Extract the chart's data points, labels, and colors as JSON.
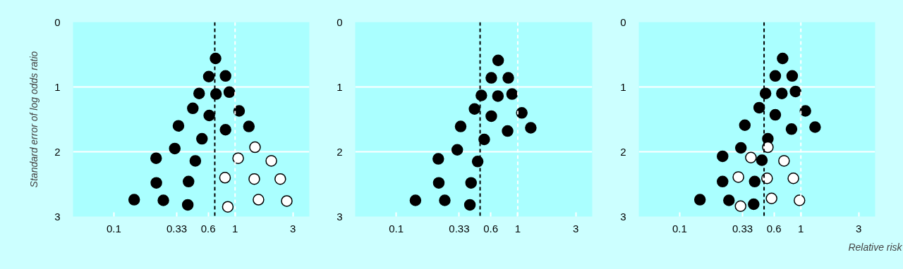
{
  "chart_data": [
    {
      "type": "scatter",
      "ylabel": "Standard error of log odds ratio",
      "xlim": [
        0.046,
        4.1
      ],
      "ylim": [
        3,
        0
      ],
      "log": "x",
      "grid": "y",
      "marker": "circle",
      "xticks": [
        0.1,
        0.33,
        0.6,
        1,
        3
      ],
      "yticks": [
        0,
        1,
        2,
        3
      ],
      "ref_lines": [
        {
          "axis": "x",
          "value": 0.68,
          "color": "#000000",
          "line_style": "dashed"
        },
        {
          "axis": "x",
          "value": 1,
          "color": "#ffffff",
          "line_style": "dashed"
        }
      ],
      "series": [
        {
          "color": "#000000",
          "x": [
            0.69,
            0.607,
            0.834,
            0.505,
            0.696,
            0.896,
            0.448,
            0.612,
            1.08,
            0.341,
            0.834,
            1.3,
            0.533,
            0.318,
            0.223,
            0.47,
            0.224,
            0.413,
            0.147,
            0.256,
            0.407
          ],
          "values": [
            0.56,
            0.84,
            0.83,
            1.1,
            1.11,
            1.08,
            1.33,
            1.44,
            1.37,
            1.6,
            1.66,
            1.61,
            1.8,
            1.95,
            2.1,
            2.14,
            2.48,
            2.46,
            2.74,
            2.75,
            2.82
          ]
        },
        {
          "color": "#ffffff",
          "x": [
            1.46,
            1.06,
            1.99,
            0.826,
            1.44,
            2.36,
            1.56,
            2.67,
            0.871
          ],
          "values": [
            1.93,
            2.1,
            2.14,
            2.4,
            2.42,
            2.42,
            2.74,
            2.76,
            2.85
          ]
        }
      ]
    },
    {
      "type": "scatter",
      "xlim": [
        0.046,
        4.1
      ],
      "ylim": [
        3,
        0
      ],
      "log": "x",
      "grid": "y",
      "marker": "circle",
      "xticks": [
        0.1,
        0.33,
        0.6,
        1,
        3
      ],
      "yticks": [
        0,
        1,
        2,
        3
      ],
      "ref_lines": [
        {
          "axis": "x",
          "value": 0.49,
          "color": "#000000",
          "line_style": "dashed"
        },
        {
          "axis": "x",
          "value": 1,
          "color": "#ffffff",
          "line_style": "dashed"
        }
      ],
      "series": [
        {
          "color": "#000000",
          "x": [
            0.69,
            0.606,
            0.836,
            0.502,
            0.687,
            0.898,
            0.441,
            0.606,
            1.08,
            0.339,
            0.825,
            1.28,
            0.53,
            0.318,
            0.222,
            0.468,
            0.224,
            0.413,
            0.144,
            0.251,
            0.404
          ],
          "values": [
            0.59,
            0.86,
            0.86,
            1.13,
            1.14,
            1.11,
            1.34,
            1.45,
            1.4,
            1.61,
            1.68,
            1.63,
            1.81,
            1.97,
            2.11,
            2.15,
            2.48,
            2.48,
            2.75,
            2.75,
            2.82
          ]
        }
      ]
    },
    {
      "type": "scatter",
      "xlabel": "Relative risk",
      "xlim": [
        0.046,
        4.1
      ],
      "ylim": [
        3,
        0
      ],
      "log": "x",
      "grid": "y",
      "marker": "circle",
      "xticks": [
        0.1,
        0.33,
        0.6,
        1,
        3
      ],
      "yticks": [
        0,
        1,
        2,
        3
      ],
      "ref_lines": [
        {
          "axis": "x",
          "value": 0.497,
          "color": "#000000",
          "line_style": "dashed"
        },
        {
          "axis": "x",
          "value": 1,
          "color": "#ffffff",
          "line_style": "dashed"
        }
      ],
      "series": [
        {
          "color": "#000000",
          "x": [
            0.707,
            0.615,
            0.848,
            0.511,
            0.697,
            0.903,
            0.453,
            0.615,
            1.09,
            0.345,
            0.837,
            1.31,
            0.534,
            0.32,
            0.226,
            0.477,
            0.226,
            0.416,
            0.147,
            0.255,
            0.408
          ],
          "values": [
            0.56,
            0.83,
            0.83,
            1.1,
            1.1,
            1.07,
            1.32,
            1.43,
            1.37,
            1.59,
            1.65,
            1.62,
            1.8,
            1.94,
            2.07,
            2.13,
            2.46,
            2.46,
            2.74,
            2.75,
            2.81
          ]
        },
        {
          "color": "#ffffff",
          "x": [
            0.534,
            0.387,
            0.726,
            0.305,
            0.526,
            0.867,
            0.573,
            0.974,
            0.318
          ],
          "values": [
            1.93,
            2.09,
            2.14,
            2.39,
            2.41,
            2.41,
            2.72,
            2.75,
            2.84
          ]
        }
      ]
    }
  ]
}
